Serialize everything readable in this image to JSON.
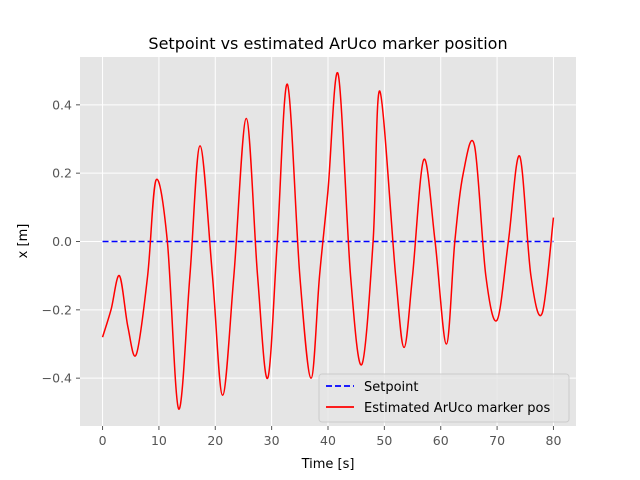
{
  "chart_data": {
    "type": "line",
    "title": "Setpoint vs estimated ArUco marker position",
    "xlabel": "Time [s]",
    "ylabel": "x [m]",
    "xlim": [
      -4,
      84
    ],
    "ylim": [
      -0.54,
      0.54
    ],
    "xticks": [
      0,
      10,
      20,
      30,
      40,
      50,
      60,
      70,
      80
    ],
    "xtick_labels": [
      "0",
      "10",
      "20",
      "30",
      "40",
      "50",
      "60",
      "70",
      "80"
    ],
    "yticks": [
      -0.4,
      -0.2,
      0.0,
      0.2,
      0.4
    ],
    "ytick_labels": [
      "−0.4",
      "−0.2",
      "0.0",
      "0.2",
      "0.4"
    ],
    "grid": true,
    "legend_position": "lower-right",
    "series": [
      {
        "name": "Setpoint",
        "color": "#0000ff",
        "linestyle": "dashed",
        "x": [
          0,
          80
        ],
        "y": [
          0.0,
          0.0
        ]
      },
      {
        "name": "Estimated ArUco marker pos",
        "color": "#ff0000",
        "linestyle": "solid",
        "x": [
          0,
          1.5,
          3,
          4.5,
          6,
          8,
          9.5,
          11.5,
          13.5,
          15.5,
          17.3,
          19.5,
          21.3,
          23.3,
          25.5,
          27.5,
          29.3,
          31,
          32.8,
          35,
          37,
          38.5,
          40,
          41.8,
          44,
          46,
          48,
          49.2,
          52,
          53.5,
          55,
          57,
          59,
          61,
          62.5,
          64,
          66,
          68,
          70,
          72,
          74,
          76,
          78,
          80
        ],
        "y": [
          -0.28,
          -0.2,
          -0.1,
          -0.25,
          -0.33,
          -0.1,
          0.18,
          0.0,
          -0.49,
          -0.1,
          0.28,
          -0.1,
          -0.45,
          -0.1,
          0.36,
          -0.1,
          -0.4,
          0.0,
          0.46,
          -0.1,
          -0.4,
          -0.1,
          0.15,
          0.49,
          -0.1,
          -0.36,
          0.0,
          0.44,
          -0.1,
          -0.31,
          -0.1,
          0.24,
          0.0,
          -0.3,
          0.0,
          0.2,
          0.28,
          -0.1,
          -0.23,
          0.0,
          0.25,
          -0.1,
          -0.21,
          0.07
        ]
      }
    ]
  }
}
